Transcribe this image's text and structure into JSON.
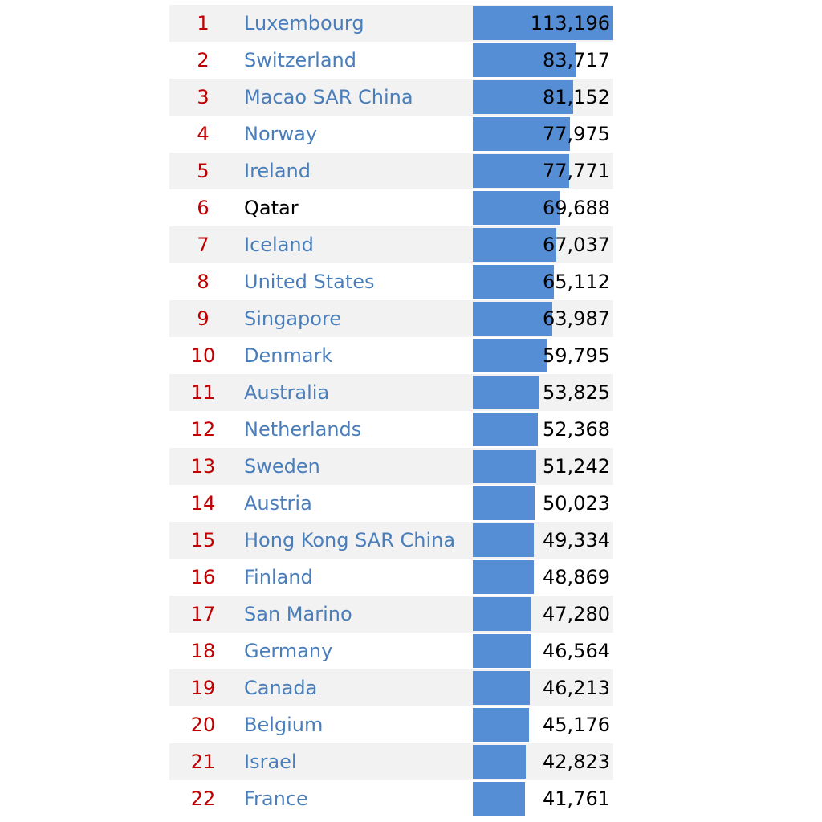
{
  "chart_data": {
    "type": "table",
    "columns": [
      "rank",
      "country",
      "value"
    ],
    "bar_max": 113196,
    "rows": [
      {
        "rank": "1",
        "country": "Luxembourg",
        "value": 113196,
        "label": "113,196",
        "link": true
      },
      {
        "rank": "2",
        "country": "Switzerland",
        "value": 83717,
        "label": "83,717",
        "link": true
      },
      {
        "rank": "3",
        "country": "Macao SAR China",
        "value": 81152,
        "label": "81,152",
        "link": true
      },
      {
        "rank": "4",
        "country": "Norway",
        "value": 77975,
        "label": "77,975",
        "link": true
      },
      {
        "rank": "5",
        "country": "Ireland",
        "value": 77771,
        "label": "77,771",
        "link": true
      },
      {
        "rank": "6",
        "country": "Qatar",
        "value": 69688,
        "label": "69,688",
        "link": false
      },
      {
        "rank": "7",
        "country": "Iceland",
        "value": 67037,
        "label": "67,037",
        "link": true
      },
      {
        "rank": "8",
        "country": "United States",
        "value": 65112,
        "label": "65,112",
        "link": true
      },
      {
        "rank": "9",
        "country": "Singapore",
        "value": 63987,
        "label": "63,987",
        "link": true
      },
      {
        "rank": "10",
        "country": "Denmark",
        "value": 59795,
        "label": "59,795",
        "link": true
      },
      {
        "rank": "11",
        "country": "Australia",
        "value": 53825,
        "label": "53,825",
        "link": true
      },
      {
        "rank": "12",
        "country": "Netherlands",
        "value": 52368,
        "label": "52,368",
        "link": true
      },
      {
        "rank": "13",
        "country": "Sweden",
        "value": 51242,
        "label": "51,242",
        "link": true
      },
      {
        "rank": "14",
        "country": "Austria",
        "value": 50023,
        "label": "50,023",
        "link": true
      },
      {
        "rank": "15",
        "country": "Hong Kong SAR China",
        "value": 49334,
        "label": "49,334",
        "link": true
      },
      {
        "rank": "16",
        "country": "Finland",
        "value": 48869,
        "label": "48,869",
        "link": true
      },
      {
        "rank": "17",
        "country": "San Marino",
        "value": 47280,
        "label": "47,280",
        "link": true
      },
      {
        "rank": "18",
        "country": "Germany",
        "value": 46564,
        "label": "46,564",
        "link": true
      },
      {
        "rank": "19",
        "country": "Canada",
        "value": 46213,
        "label": "46,213",
        "link": true
      },
      {
        "rank": "20",
        "country": "Belgium",
        "value": 45176,
        "label": "45,176",
        "link": true
      },
      {
        "rank": "21",
        "country": "Israel",
        "value": 42823,
        "label": "42,823",
        "link": true
      },
      {
        "rank": "22",
        "country": "France",
        "value": 41761,
        "label": "41,761",
        "link": true
      }
    ]
  },
  "colors": {
    "rank": "#c00000",
    "link": "#4a7ebb",
    "bar": "#558ed5",
    "shade": "#f2f2f2"
  }
}
